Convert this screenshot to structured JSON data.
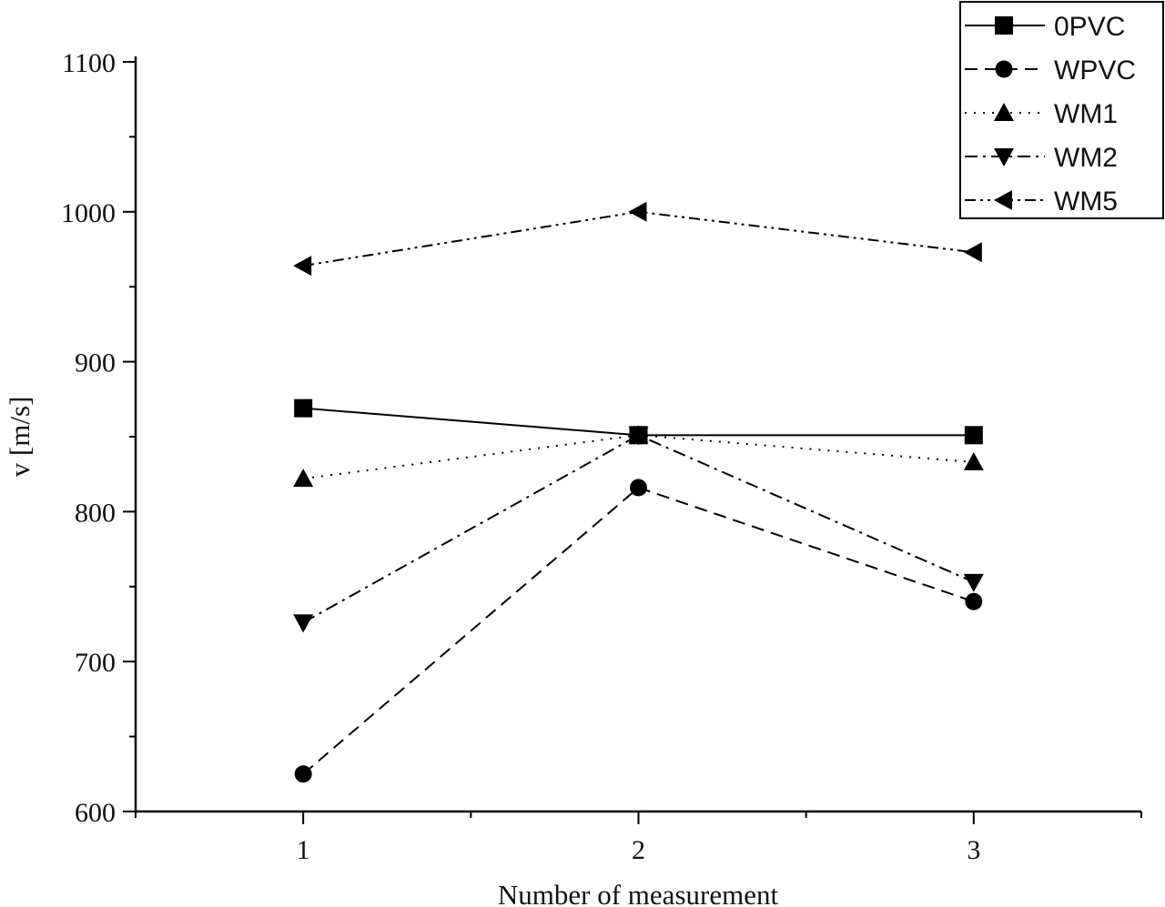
{
  "chart_data": {
    "type": "line",
    "xlabel": "Number of measurement",
    "ylabel": "v [m/s]",
    "x": [
      1,
      2,
      3
    ],
    "xlim": [
      0.5,
      3.5
    ],
    "ylim": [
      600,
      1100
    ],
    "xticks": [
      "1",
      "2",
      "3"
    ],
    "yticks": [
      "600",
      "700",
      "800",
      "900",
      "1000",
      "1100"
    ],
    "grid": false,
    "legend_position": "top-right",
    "series": [
      {
        "name": "0PVC",
        "values": [
          869,
          851,
          851
        ],
        "marker": "square",
        "dash": "solid"
      },
      {
        "name": "WPVC",
        "values": [
          625,
          816,
          740
        ],
        "marker": "circle",
        "dash": "dashed"
      },
      {
        "name": "WM1",
        "values": [
          822,
          851,
          833
        ],
        "marker": "triangle-up",
        "dash": "dotted"
      },
      {
        "name": "WM2",
        "values": [
          726,
          851,
          753
        ],
        "marker": "triangle-down",
        "dash": "dash-dot"
      },
      {
        "name": "WM5",
        "values": [
          964,
          1000,
          973
        ],
        "marker": "triangle-left",
        "dash": "dash-dot-dot"
      }
    ]
  }
}
